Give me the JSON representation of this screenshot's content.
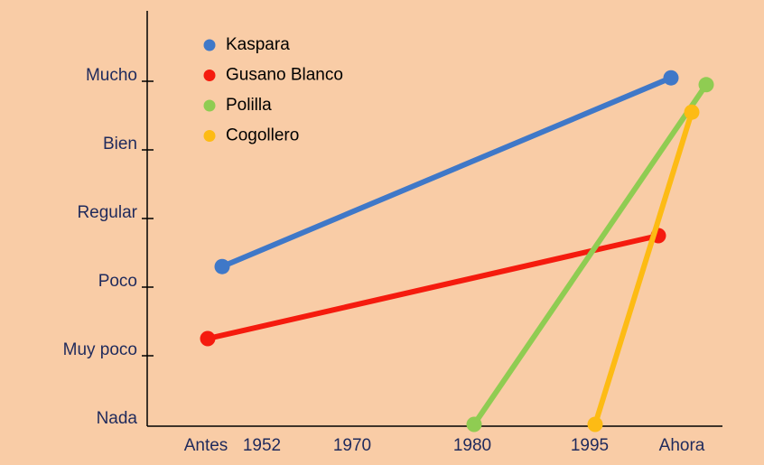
{
  "chart_data": {
    "type": "line",
    "categories": [
      "Antes",
      "1952",
      "1970",
      "1980",
      "1995",
      "Ahora"
    ],
    "series": [
      {
        "name": "Kaspara",
        "color": "#3f78c8",
        "x": [
          "Antes",
          "Ahora"
        ],
        "values": [
          2.3,
          5.05
        ]
      },
      {
        "name": "Gusano Blanco",
        "color": "#f51b0e",
        "x": [
          "Antes",
          "Ahora"
        ],
        "values": [
          1.25,
          2.75
        ]
      },
      {
        "name": "Polilla",
        "color": "#8fcc52",
        "x": [
          "1980",
          "Ahora"
        ],
        "values": [
          0,
          4.95
        ]
      },
      {
        "name": "Cogollero",
        "color": "#fdbb14",
        "x": [
          "1995",
          "Ahora"
        ],
        "values": [
          0,
          4.55
        ]
      }
    ],
    "ylim": [
      0,
      6
    ],
    "yticks": [
      {
        "value": 0,
        "label": "Nada"
      },
      {
        "value": 1,
        "label": "Muy poco"
      },
      {
        "value": 2,
        "label": "Poco"
      },
      {
        "value": 3,
        "label": "Regular"
      },
      {
        "value": 4,
        "label": "Bien"
      },
      {
        "value": 5,
        "label": "Mucho"
      }
    ],
    "legend": "upper left"
  }
}
